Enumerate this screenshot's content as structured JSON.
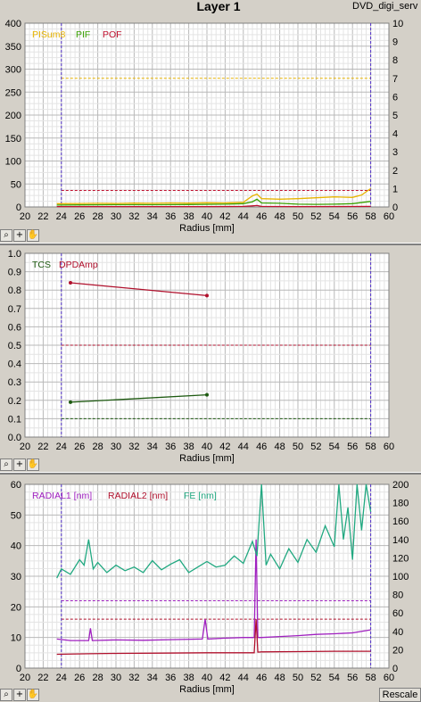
{
  "window": {
    "title": "Layer 1",
    "tab_label": "DVD_digi_serv",
    "rescale_label": "Rescale"
  },
  "chart_data": [
    {
      "type": "line",
      "xlabel": "Radius [mm]",
      "xlim": [
        20,
        60
      ],
      "ylim": [
        0,
        400
      ],
      "y2lim": [
        0,
        10
      ],
      "x_ticks": [
        "20",
        "22",
        "24",
        "26",
        "28",
        "30",
        "32",
        "34",
        "36",
        "38",
        "40",
        "42",
        "44",
        "46",
        "48",
        "50",
        "52",
        "54",
        "56",
        "58",
        "60"
      ],
      "y_ticks": [
        "0",
        "50",
        "100",
        "150",
        "200",
        "250",
        "300",
        "350",
        "400"
      ],
      "y2_ticks": [
        "0",
        "1",
        "2",
        "3",
        "4",
        "5",
        "6",
        "7",
        "8",
        "9",
        "10"
      ],
      "legend": [
        {
          "name": "PISum8",
          "color": "#e8b400"
        },
        {
          "name": "PIF",
          "color": "#38a000"
        },
        {
          "name": "POF",
          "color": "#c0102e"
        }
      ],
      "markers": [
        24,
        58
      ],
      "thresholds": [
        {
          "axis": "y2",
          "value": 7,
          "color": "#e8b400"
        },
        {
          "axis": "y2",
          "value": 0.9,
          "color": "#c0102e"
        }
      ],
      "series": [
        {
          "name": "PISum8",
          "color": "#e8b400",
          "axis": "y2",
          "x": [
            23.5,
            26,
            28,
            30,
            32,
            34,
            36,
            38,
            40,
            42,
            44,
            45,
            45.5,
            46,
            48,
            50,
            52,
            54,
            56,
            57,
            58
          ],
          "y": [
            0.18,
            0.19,
            0.2,
            0.19,
            0.21,
            0.2,
            0.22,
            0.21,
            0.23,
            0.22,
            0.25,
            0.6,
            0.7,
            0.45,
            0.42,
            0.45,
            0.5,
            0.55,
            0.52,
            0.65,
            1.0
          ]
        },
        {
          "name": "PIF",
          "color": "#38a000",
          "axis": "y2",
          "x": [
            23.5,
            26,
            30,
            34,
            38,
            42,
            44,
            45,
            45.5,
            46,
            48,
            50,
            52,
            54,
            56,
            58
          ],
          "y": [
            0.1,
            0.11,
            0.12,
            0.12,
            0.13,
            0.15,
            0.18,
            0.28,
            0.42,
            0.22,
            0.2,
            0.15,
            0.14,
            0.15,
            0.18,
            0.3
          ]
        },
        {
          "name": "POF",
          "color": "#c0102e",
          "axis": "y2",
          "x": [
            23.5,
            30,
            40,
            44,
            45,
            45.5,
            46,
            50,
            58
          ],
          "y": [
            0.02,
            0.02,
            0.02,
            0.03,
            0.06,
            0.08,
            0.03,
            0.02,
            0.03
          ]
        }
      ]
    },
    {
      "type": "line",
      "xlabel": "Radius [mm]",
      "xlim": [
        20,
        60
      ],
      "ylim": [
        0,
        1
      ],
      "x_ticks": [
        "20",
        "22",
        "24",
        "26",
        "28",
        "30",
        "32",
        "34",
        "36",
        "38",
        "40",
        "42",
        "44",
        "46",
        "48",
        "50",
        "52",
        "54",
        "56",
        "58",
        "60"
      ],
      "y_ticks": [
        "0.0",
        "0.1",
        "0.2",
        "0.3",
        "0.4",
        "0.5",
        "0.6",
        "0.7",
        "0.8",
        "0.9",
        "1.0"
      ],
      "legend": [
        {
          "name": "TCS",
          "color": "#1d5a10"
        },
        {
          "name": "DPDAmp",
          "color": "#b0102c"
        }
      ],
      "markers": [
        24,
        58
      ],
      "thresholds": [
        {
          "axis": "y",
          "value": 0.5,
          "color": "#b0102c"
        },
        {
          "axis": "y",
          "value": 0.1,
          "color": "#1d5a10"
        }
      ],
      "series": [
        {
          "name": "TCS",
          "color": "#1d5a10",
          "axis": "y",
          "x": [
            25,
            40
          ],
          "y": [
            0.19,
            0.23
          ]
        },
        {
          "name": "DPDAmp",
          "color": "#b0102c",
          "axis": "y",
          "x": [
            25,
            40
          ],
          "y": [
            0.84,
            0.77
          ]
        }
      ]
    },
    {
      "type": "line",
      "xlabel": "Radius [mm]",
      "xlim": [
        20,
        60
      ],
      "ylim": [
        0,
        60
      ],
      "y2lim": [
        0,
        200
      ],
      "x_ticks": [
        "20",
        "22",
        "24",
        "26",
        "28",
        "30",
        "32",
        "34",
        "36",
        "38",
        "40",
        "42",
        "44",
        "46",
        "48",
        "50",
        "52",
        "54",
        "56",
        "58",
        "60"
      ],
      "y_ticks": [
        "0",
        "10",
        "20",
        "30",
        "40",
        "50",
        "60"
      ],
      "y2_ticks": [
        "0",
        "20",
        "40",
        "60",
        "80",
        "100",
        "120",
        "140",
        "160",
        "180",
        "200"
      ],
      "legend": [
        {
          "name": "RADIAL1 [nm]",
          "color": "#a020c0"
        },
        {
          "name": "RADIAL2 [nm]",
          "color": "#b0102c"
        },
        {
          "name": "FE [nm]",
          "color": "#20a880"
        }
      ],
      "markers": [
        24,
        58
      ],
      "thresholds": [
        {
          "axis": "y",
          "value": 22,
          "color": "#a020c0"
        },
        {
          "axis": "y",
          "value": 16,
          "color": "#b0102c"
        }
      ],
      "series": [
        {
          "name": "RADIAL1 [nm]",
          "color": "#a020c0",
          "axis": "y",
          "x": [
            23.5,
            25,
            27,
            27.2,
            27.4,
            30,
            33,
            36,
            39.5,
            39.8,
            40.1,
            42,
            44,
            45.2,
            45.4,
            45.6,
            46,
            48,
            50,
            52,
            54,
            56,
            58
          ],
          "y": [
            9.5,
            9,
            9,
            13,
            9,
            9.2,
            9.1,
            9.3,
            9.5,
            16,
            9.5,
            9.8,
            10,
            10,
            42,
            10,
            10,
            10.3,
            10.6,
            11,
            11.2,
            11.5,
            12.5
          ]
        },
        {
          "name": "RADIAL2 [nm]",
          "color": "#b0102c",
          "axis": "y",
          "x": [
            23.5,
            27,
            30,
            35,
            40,
            44,
            45.2,
            45.4,
            45.6,
            46,
            50,
            54,
            58
          ],
          "y": [
            4.5,
            4.7,
            4.8,
            4.9,
            5,
            5,
            5,
            16,
            5.2,
            5.3,
            5.4,
            5.5,
            5.5
          ]
        },
        {
          "name": "FE [nm]",
          "color": "#20a880",
          "axis": "y2",
          "x": [
            23.5,
            24,
            25,
            26,
            26.5,
            27,
            27.5,
            28,
            29,
            30,
            31,
            32,
            33,
            34,
            35,
            36,
            37,
            38,
            39,
            40,
            41,
            42,
            43,
            44,
            45,
            45.5,
            46,
            46.5,
            47,
            48,
            49,
            50,
            51,
            52,
            53,
            54,
            54.5,
            55,
            55.5,
            56,
            56.5,
            57,
            57.5,
            58
          ],
          "y": [
            98,
            108,
            102,
            118,
            112,
            140,
            108,
            115,
            104,
            112,
            106,
            110,
            104,
            117,
            107,
            113,
            118,
            104,
            110,
            116,
            110,
            112,
            122,
            114,
            138,
            122,
            200,
            112,
            124,
            108,
            130,
            115,
            140,
            126,
            155,
            132,
            200,
            140,
            175,
            118,
            200,
            150,
            200,
            170
          ]
        }
      ]
    }
  ]
}
